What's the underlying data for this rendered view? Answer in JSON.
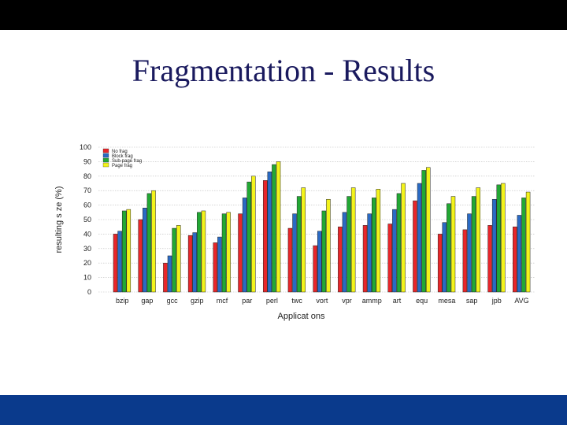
{
  "slide": {
    "title": "Fragmentation - Results",
    "top_bar_color": "#000000",
    "bottom_bar_color": "#0a3a8c"
  },
  "chart_data": {
    "type": "bar",
    "xlabel": "Applicat ons",
    "ylabel": "resulting s ze (%)",
    "ylim": [
      0,
      100
    ],
    "yticks": [
      0,
      10,
      20,
      30,
      40,
      50,
      60,
      70,
      80,
      90,
      100
    ],
    "grid": true,
    "legend_placement": "top-left",
    "categories": [
      "bzip",
      "gap",
      "gcc",
      "gzip",
      "mcf",
      "par",
      "perl",
      "twc",
      "vort",
      "vpr",
      "ammp",
      "art",
      "equ",
      "mesa",
      "sap",
      "jpb",
      "AVG"
    ],
    "series": [
      {
        "name": "No frag",
        "color": "#e8262a",
        "values": [
          40,
          50,
          20,
          39,
          34,
          54,
          77,
          44,
          32,
          45,
          46,
          47,
          63,
          40,
          43,
          46,
          45
        ]
      },
      {
        "name": "Block frag",
        "color": "#2a6ac4",
        "values": [
          42,
          58,
          25,
          41,
          38,
          65,
          83,
          54,
          42,
          55,
          54,
          57,
          75,
          48,
          54,
          64,
          53
        ]
      },
      {
        "name": "Sub-page frag",
        "color": "#22a834",
        "values": [
          56,
          68,
          44,
          55,
          54,
          76,
          88,
          66,
          56,
          66,
          65,
          68,
          84,
          61,
          66,
          74,
          65
        ]
      },
      {
        "name": "Page frag",
        "color": "#f3f31b",
        "values": [
          57,
          70,
          46,
          56,
          55,
          80,
          90,
          72,
          64,
          72,
          71,
          75,
          86,
          66,
          72,
          75,
          69
        ]
      }
    ]
  }
}
